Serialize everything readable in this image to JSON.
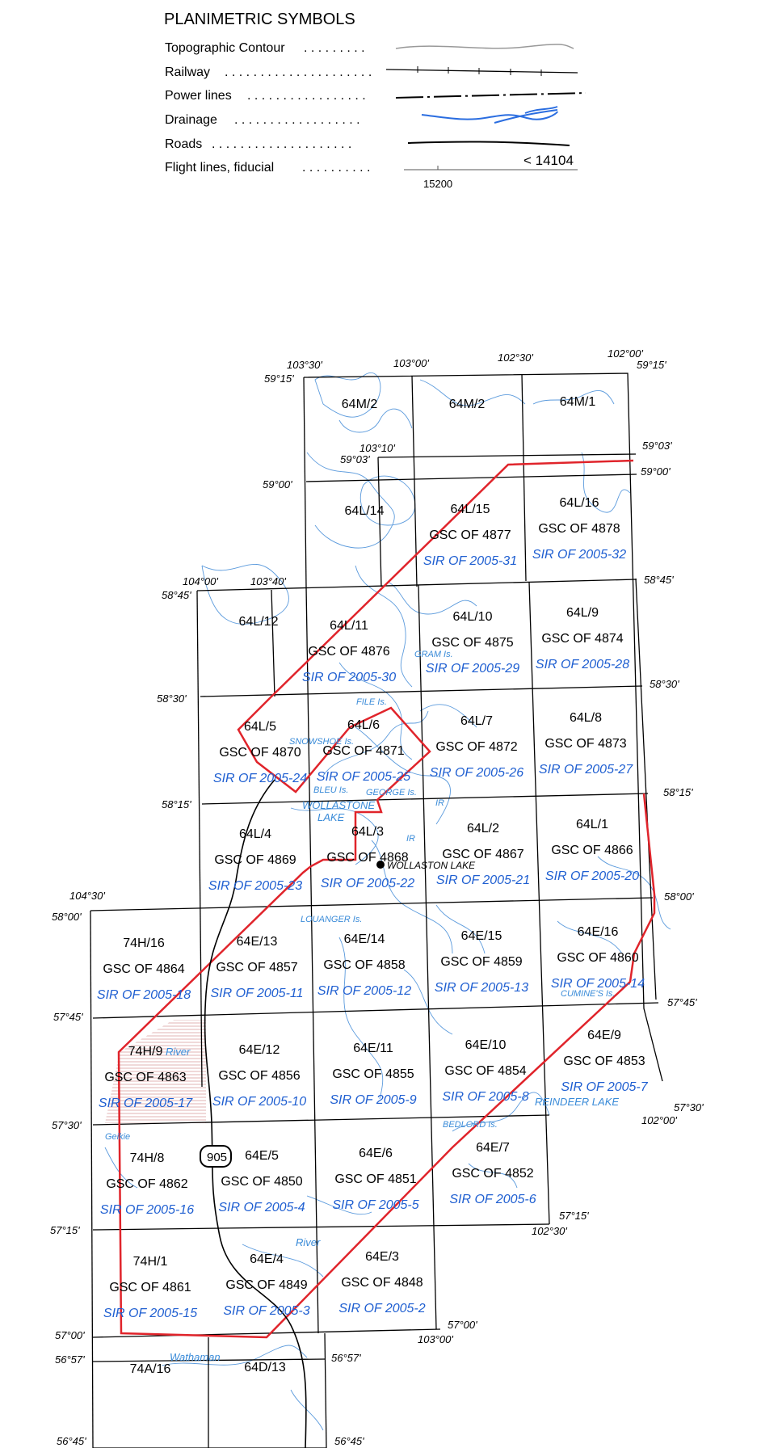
{
  "legend": {
    "title": "PLANIMETRIC SYMBOLS",
    "items": [
      {
        "label": "Topographic Contour",
        "leader": ". . . . . . . . .",
        "symbol": "contour-line-icon"
      },
      {
        "label": "Railway",
        "leader": ". . . . . . . . . . . . . . . . . . . . .",
        "symbol": "railway-line-icon"
      },
      {
        "label": "Power lines",
        "leader": ". . . . . . . . . . . . . . . . .",
        "symbol": "power-line-icon"
      },
      {
        "label": "Drainage",
        "leader": ". . . . . . . . . . . . . . . . . .",
        "symbol": "drainage-line-icon"
      },
      {
        "label": "Roads",
        "leader": ". . . . . . . . . . . . . . . . . . . .",
        "symbol": "road-line-icon"
      },
      {
        "label": "Flight lines, fiducial",
        "leader": ". . . . . . . . . .",
        "symbol": "flight-line-icon"
      }
    ],
    "flight_label": "< 14104",
    "fiducial_label": "15200"
  },
  "colors": {
    "grid": "#000000",
    "boundary": "#e0242b",
    "drainage": "#4a90d9",
    "sir_text": "#1f5fd1",
    "hatch": "#d9a0a0"
  },
  "sheets": [
    {
      "id": "64M/2",
      "gsc": "",
      "sir": ""
    },
    {
      "id": "64M/2",
      "gsc": "",
      "sir": ""
    },
    {
      "id": "64M/1",
      "gsc": "",
      "sir": ""
    },
    {
      "id": "64L/14",
      "gsc": "",
      "sir": ""
    },
    {
      "id": "64L/15",
      "gsc": "GSC OF 4877",
      "sir": "SIR OF 2005-31"
    },
    {
      "id": "64L/16",
      "gsc": "GSC OF 4878",
      "sir": "SIR OF 2005-32"
    },
    {
      "id": "64L/12",
      "gsc": "",
      "sir": ""
    },
    {
      "id": "64L/11",
      "gsc": "GSC OF 4876",
      "sir": "SIR OF 2005-30"
    },
    {
      "id": "64L/10",
      "gsc": "GSC OF 4875",
      "sir": "SIR OF 2005-29"
    },
    {
      "id": "64L/9",
      "gsc": "GSC OF 4874",
      "sir": "SIR OF 2005-28"
    },
    {
      "id": "64L/5",
      "gsc": "GSC OF 4870",
      "sir": "SIR OF 2005-24"
    },
    {
      "id": "64L/6",
      "gsc": "GSC OF 4871",
      "sir": "SIR OF 2005-25"
    },
    {
      "id": "64L/7",
      "gsc": "GSC OF 4872",
      "sir": "SIR OF 2005-26"
    },
    {
      "id": "64L/8",
      "gsc": "GSC OF 4873",
      "sir": "SIR OF 2005-27"
    },
    {
      "id": "64L/4",
      "gsc": "GSC OF 4869",
      "sir": "SIR OF 2005-23"
    },
    {
      "id": "64L/3",
      "gsc": "GSC OF 4868",
      "sir": "SIR OF 2005-22"
    },
    {
      "id": "64L/2",
      "gsc": "GSC OF 4867",
      "sir": "SIR OF 2005-21"
    },
    {
      "id": "64L/1",
      "gsc": "GSC OF 4866",
      "sir": "SIR OF 2005-20"
    },
    {
      "id": "74H/16",
      "gsc": "GSC OF 4864",
      "sir": "SIR OF 2005-18"
    },
    {
      "id": "64E/13",
      "gsc": "GSC OF 4857",
      "sir": "SIR OF 2005-11"
    },
    {
      "id": "64E/14",
      "gsc": "GSC OF 4858",
      "sir": "SIR OF 2005-12"
    },
    {
      "id": "64E/15",
      "gsc": "GSC OF 4859",
      "sir": "SIR OF 2005-13"
    },
    {
      "id": "64E/16",
      "gsc": "GSC OF 4860",
      "sir": "SIR OF 2005-14"
    },
    {
      "id": "74H/9",
      "gsc": "GSC OF 4863",
      "sir": "SIR OF 2005-17"
    },
    {
      "id": "64E/12",
      "gsc": "GSC OF 4856",
      "sir": "SIR OF 2005-10"
    },
    {
      "id": "64E/11",
      "gsc": "GSC OF 4855",
      "sir": "SIR OF 2005-9"
    },
    {
      "id": "64E/10",
      "gsc": "GSC OF 4854",
      "sir": "SIR OF 2005-8"
    },
    {
      "id": "64E/9",
      "gsc": "GSC OF 4853",
      "sir": "SIR OF 2005-7"
    },
    {
      "id": "74H/8",
      "gsc": "GSC OF 4862",
      "sir": "SIR OF 2005-16"
    },
    {
      "id": "64E/5",
      "gsc": "GSC OF 4850",
      "sir": "SIR OF 2005-4"
    },
    {
      "id": "64E/6",
      "gsc": "GSC OF 4851",
      "sir": "SIR OF 2005-5"
    },
    {
      "id": "64E/7",
      "gsc": "GSC OF 4852",
      "sir": "SIR OF 2005-6"
    },
    {
      "id": "74H/1",
      "gsc": "GSC OF 4861",
      "sir": "SIR OF 2005-15"
    },
    {
      "id": "64E/4",
      "gsc": "GSC OF 4849",
      "sir": "SIR OF 2005-3"
    },
    {
      "id": "64E/3",
      "gsc": "GSC OF 4848",
      "sir": "SIR OF 2005-2"
    },
    {
      "id": "74A/16",
      "gsc": "",
      "sir": ""
    },
    {
      "id": "64D/13",
      "gsc": "",
      "sir": ""
    }
  ],
  "coords": [
    "103°30'",
    "103°00'",
    "102°30'",
    "102°00'",
    "59°15'",
    "59°15'",
    "59°03'",
    "103°10'",
    "59°03'",
    "59°00'",
    "59°00'",
    "104°00'",
    "103°40'",
    "58°45'",
    "58°45'",
    "58°30'",
    "58°30'",
    "58°15'",
    "58°15'",
    "104°30'",
    "58°00'",
    "58°00'",
    "57°45'",
    "57°45'",
    "57°30'",
    "57°30'",
    "102°00'",
    "57°15'",
    "57°15'",
    "102°30'",
    "57°00'",
    "57°00'",
    "103°00'",
    "56°57'",
    "56°57'",
    "56°45'",
    "56°45'"
  ],
  "places": [
    "FILE Is.",
    "SNOWSHOE Is.",
    "GRAM Is.",
    "BLEU Is.",
    "GEORGE Is.",
    "WOLLASTONE",
    "LAKE",
    "IR",
    "IR",
    "LOUANGER Is.",
    "CUMINE'S Is.",
    "REINDEER LAKE",
    "BEDLORD Is.",
    "River",
    "River",
    "Wathaman",
    "Geikie"
  ],
  "town": "WOLLASTON LAKE",
  "highway": "905"
}
